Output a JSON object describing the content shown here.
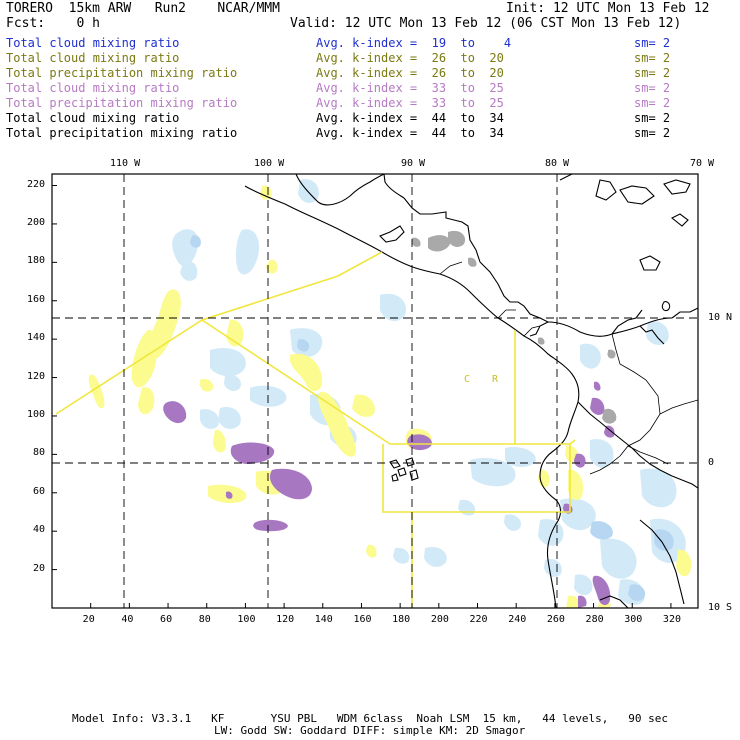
{
  "header": {
    "model_line": "TORERO  15km ARW   Run2    NCAR/MMM",
    "init": "Init: 12 UTC Mon 13 Feb 12",
    "fcst": "Fcst:    0 h",
    "valid": "Valid: 12 UTC Mon 13 Feb 12 (06 CST Mon 13 Feb 12)"
  },
  "legend_rows": [
    {
      "field": "Total cloud mixing ratio",
      "index": "Avg. k-index =  19  to    4",
      "sm": "sm= 2",
      "color": "#1f2fd0"
    },
    {
      "field": "Total cloud mixing ratio",
      "index": "Avg. k-index =  26  to  20",
      "sm": "sm= 2",
      "color": "#7b7a12"
    },
    {
      "field": "Total precipitation mixing ratio",
      "index": "Avg. k-index =  26  to  20",
      "sm": "sm= 2",
      "color": "#7b7a12"
    },
    {
      "field": "Total cloud mixing ratio",
      "index": "Avg. k-index =  33  to  25",
      "sm": "sm= 2",
      "color": "#b77ac4"
    },
    {
      "field": "Total precipitation mixing ratio",
      "index": "Avg. k-index =  33  to  25",
      "sm": "sm= 2",
      "color": "#b77ac4"
    },
    {
      "field": "Total cloud mixing ratio",
      "index": "Avg. k-index =  44  to  34",
      "sm": "sm= 2",
      "color": "#000000"
    },
    {
      "field": "Total precipitation mixing ratio",
      "index": "Avg. k-index =  44  to  34",
      "sm": "sm= 2",
      "color": "#000000"
    }
  ],
  "map": {
    "lon_labels": [
      "110 W",
      "100 W",
      "90 W",
      "80 W",
      "70 W"
    ],
    "lat_labels": [
      "10 N",
      "0",
      "10 S"
    ],
    "x_ticks": [
      "20",
      "40",
      "60",
      "80",
      "100",
      "120",
      "140",
      "160",
      "180",
      "200",
      "220",
      "240",
      "260",
      "280",
      "300",
      "320"
    ],
    "y_ticks": [
      "20",
      "40",
      "60",
      "80",
      "100",
      "120",
      "140",
      "160",
      "180",
      "200",
      "220"
    ],
    "country_labels": [
      "C",
      "R"
    ],
    "colors": {
      "cloud_low": "#d2e9f7",
      "cloud_mid": "#b6d6f2",
      "yellow": "#fbfb8f",
      "purple": "#a877c2",
      "gray": "#a9a9a9",
      "box": "#f0e63c"
    }
  },
  "footer": {
    "line1": "Model Info: V3.3.1   KF       YSU PBL   WDM 6class  Noah LSM  15 km,   44 levels,   90 sec",
    "line2": "LW: Godd SW: Goddard DIFF: simple KM: 2D Smagor"
  }
}
